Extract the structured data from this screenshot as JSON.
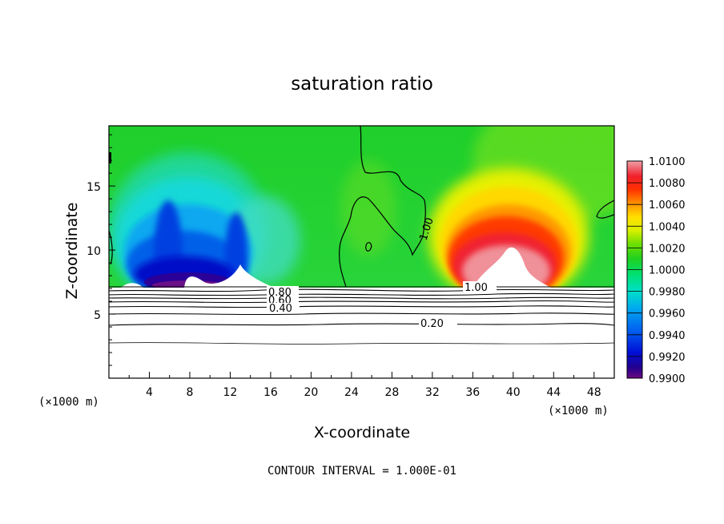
{
  "chart_data": {
    "type": "heatmap",
    "title": "saturation ratio",
    "xlabel": "X-coordinate",
    "ylabel": "Z-coordinate",
    "x_unit": "(×1000 m)",
    "y_unit": "(×1000 m)",
    "xlim": [
      0,
      50
    ],
    "ylim": [
      0,
      19.7
    ],
    "x_ticks": [
      4,
      8,
      12,
      16,
      20,
      24,
      28,
      32,
      36,
      40,
      44,
      48
    ],
    "y_ticks": [
      5,
      10,
      15
    ],
    "colorbar": {
      "levels": [
        "1.0100",
        "1.0080",
        "1.0060",
        "1.0040",
        "1.0020",
        "1.0000",
        "0.9980",
        "0.9960",
        "0.9940",
        "0.9920",
        "0.9900"
      ],
      "range": [
        0.99,
        1.01
      ]
    },
    "contour_labels": [
      "1.00",
      "0.80",
      "0.60",
      "0.40",
      "0.20",
      "1.00"
    ],
    "footnote": "CONTOUR INTERVAL = 1.000E-01"
  }
}
